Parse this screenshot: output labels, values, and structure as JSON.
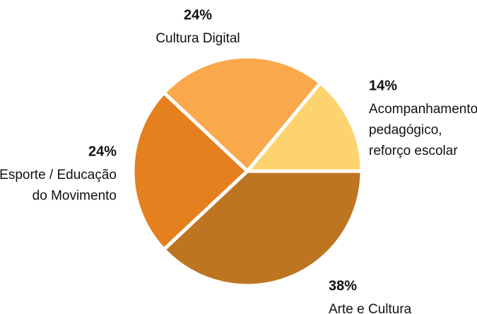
{
  "chart_data": {
    "type": "pie",
    "categories": [
      [
        "Acompanhamento",
        "pedagógico,",
        "reforço escolar"
      ],
      [
        "Cultura Digital"
      ],
      [
        "Esporte / Educação",
        "do Movimento"
      ],
      [
        "Arte e Cultura"
      ]
    ],
    "values": [
      14,
      24,
      24,
      38
    ],
    "value_labels": [
      "14%",
      "24%",
      "24%",
      "38%"
    ],
    "colors": [
      "#fdd36f",
      "#f9a94b",
      "#e5801f",
      "#bd7522"
    ]
  }
}
